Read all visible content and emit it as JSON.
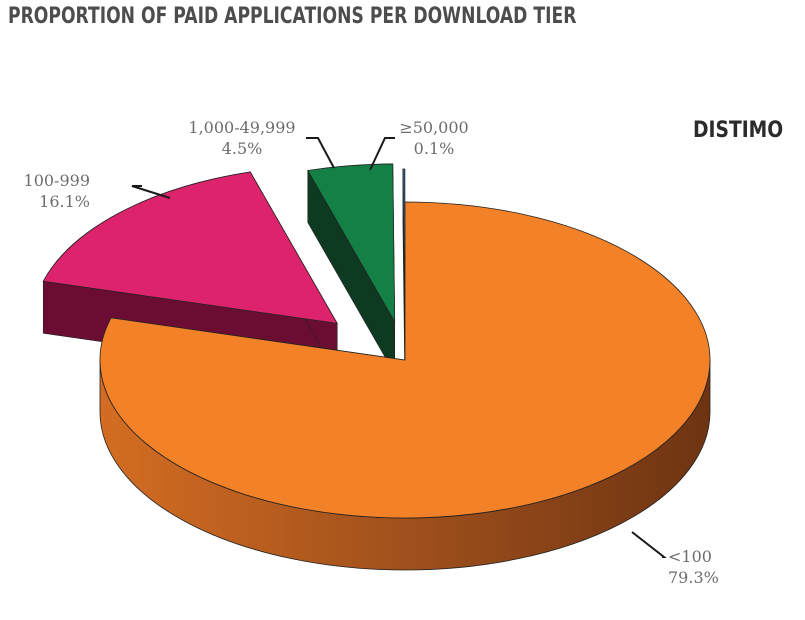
{
  "title": "PROPORTION OF PAID APPLICATIONS PER DOWNLOAD TIER",
  "logo": "DISTIMO",
  "chart_data": {
    "type": "pie",
    "title": "PROPORTION OF PAID APPLICATIONS PER DOWNLOAD TIER",
    "categories": [
      "<100",
      "100-999",
      "1,000-49,999",
      "≥50,000"
    ],
    "values": [
      79.3,
      16.1,
      4.5,
      0.1
    ],
    "labels": [
      "79.3%",
      "16.1%",
      "4.5%",
      "0.1%"
    ],
    "colors": [
      "#f28127",
      "#dc236c",
      "#138146",
      "#3d6f9e"
    ],
    "side_colors": [
      "#a04f1c",
      "#6b0d32",
      "#0f3a22",
      "#2a4f72"
    ],
    "exploded": true,
    "three_d": true
  }
}
